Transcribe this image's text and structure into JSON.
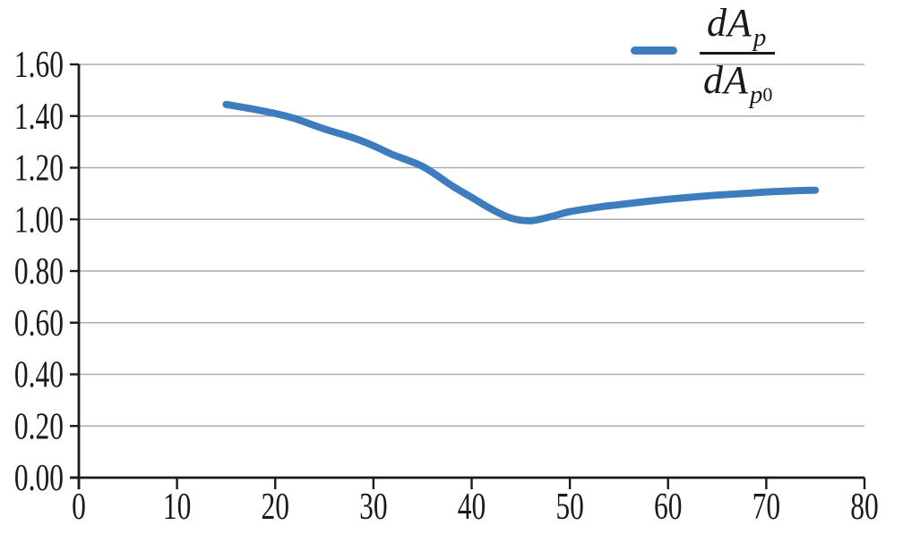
{
  "colors": {
    "line": "#3D7DBE",
    "grid": "#ABABAB",
    "axis": "#1A1A1A",
    "text": "#1A1A1A",
    "background": "#FFFFFF"
  },
  "legend": {
    "numerator": {
      "base": "dA",
      "sub": "p"
    },
    "denominator": {
      "base": "dA",
      "sub": "p",
      "subsub": "0"
    }
  },
  "chart_data": {
    "type": "line",
    "title": "",
    "xlabel": "",
    "ylabel": "",
    "xlim": [
      0,
      80
    ],
    "ylim": [
      0,
      1.6
    ],
    "x_ticks": [
      0,
      10,
      20,
      30,
      40,
      50,
      60,
      70,
      80
    ],
    "x_tick_labels": [
      "0",
      "10",
      "20",
      "30",
      "40",
      "50",
      "60",
      "70",
      "80"
    ],
    "y_ticks": [
      0,
      0.2,
      0.4,
      0.6,
      0.8,
      1.0,
      1.2,
      1.4,
      1.6
    ],
    "y_tick_labels": [
      "0.00",
      "0.20",
      "0.40",
      "0.60",
      "0.80",
      "1.00",
      "1.20",
      "1.40",
      "1.60"
    ],
    "grid": "horizontal",
    "legend_position": "top-right",
    "series": [
      {
        "name": "dA_p / dA_p0",
        "color": "#3D7DBE",
        "stroke_width": 8,
        "points": [
          [
            15,
            1.445
          ],
          [
            18,
            1.425
          ],
          [
            20,
            1.41
          ],
          [
            22,
            1.39
          ],
          [
            25,
            1.35
          ],
          [
            28,
            1.315
          ],
          [
            30,
            1.285
          ],
          [
            32,
            1.25
          ],
          [
            35,
            1.205
          ],
          [
            38,
            1.13
          ],
          [
            40,
            1.085
          ],
          [
            42,
            1.04
          ],
          [
            44,
            1.005
          ],
          [
            46,
            0.995
          ],
          [
            48,
            1.01
          ],
          [
            50,
            1.03
          ],
          [
            53,
            1.048
          ],
          [
            55,
            1.057
          ],
          [
            58,
            1.07
          ],
          [
            60,
            1.078
          ],
          [
            63,
            1.088
          ],
          [
            65,
            1.094
          ],
          [
            68,
            1.101
          ],
          [
            70,
            1.106
          ],
          [
            73,
            1.111
          ],
          [
            75,
            1.113
          ]
        ]
      }
    ]
  }
}
